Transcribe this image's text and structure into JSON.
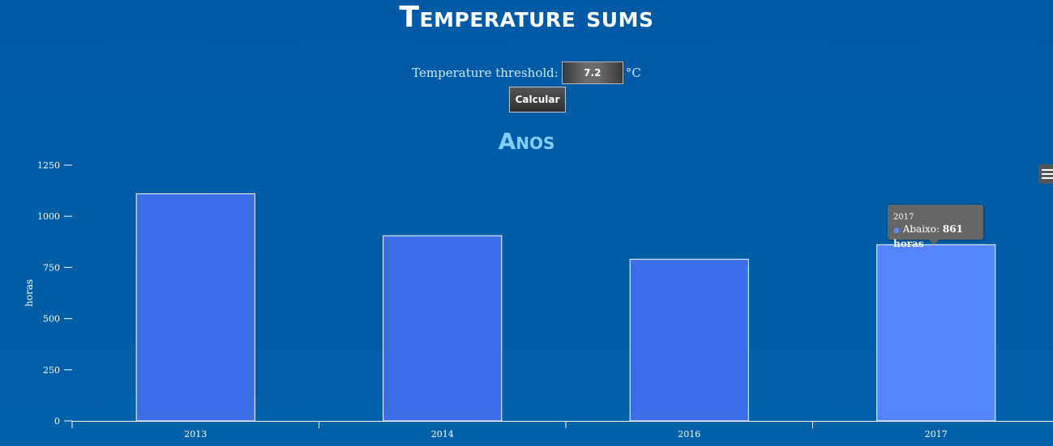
{
  "page": {
    "title": "Temperature sums"
  },
  "form": {
    "threshold_label": "Temperature threshold:",
    "threshold_value": "7.2",
    "unit": "°C",
    "calc_label": "Calcular"
  },
  "chart_data": {
    "type": "bar",
    "title": "Anos",
    "ylabel": "horas",
    "xlabel": "",
    "categories": [
      "2013",
      "2014",
      "2016",
      "2017"
    ],
    "series": [
      {
        "name": "Abaixo",
        "values": [
          1110,
          905,
          790,
          861
        ]
      }
    ],
    "ylim": [
      0,
      1250
    ],
    "yticks": [
      "0",
      "250",
      "500",
      "750",
      "1000",
      "1250"
    ],
    "hovered_index": 3,
    "bar_color": "#3b6ee8",
    "hover_color": "#5584ff"
  },
  "tooltip": {
    "year": "2017",
    "series_label": "Abaixo:",
    "value_text": "861 horas"
  }
}
